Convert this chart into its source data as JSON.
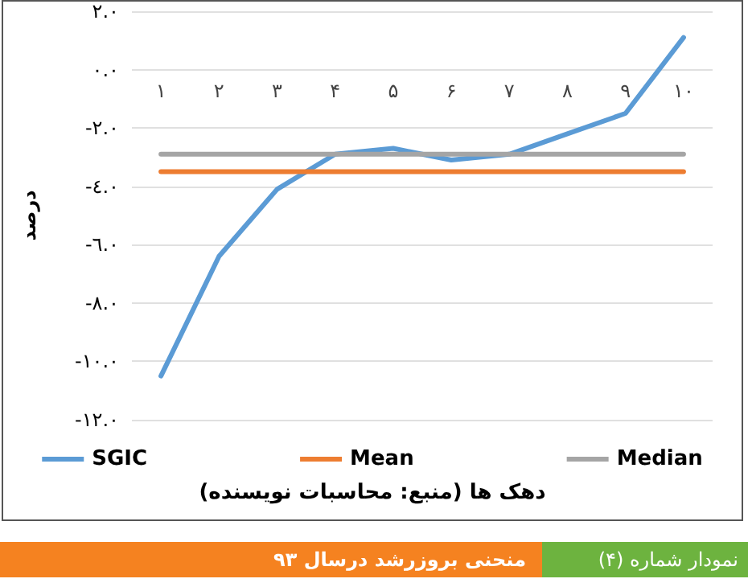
{
  "chart_data": {
    "type": "line",
    "title": "منحنی بروزرشد درسال ۹۳",
    "annotations": [
      "نمودار شماره (۴)"
    ],
    "xlabel": "دهک ها (منبع: محاسبات نویسنده)",
    "ylabel": "درصد",
    "categories": [
      "۱",
      "۲",
      "۳",
      "۴",
      "۵",
      "۶",
      "۷",
      "۸",
      "۹",
      "۱۰"
    ],
    "series": [
      {
        "name": "SGIC",
        "color": "#5b9bd5",
        "values": [
          -10.5,
          -6.4,
          -4.1,
          -2.9,
          -2.7,
          -3.1,
          -2.9,
          -2.2,
          -1.5,
          1.1
        ]
      },
      {
        "name": "Mean",
        "color": "#ed7d31",
        "values": [
          -3.5,
          -3.5,
          -3.5,
          -3.5,
          -3.5,
          -3.5,
          -3.5,
          -3.5,
          -3.5,
          -3.5
        ]
      },
      {
        "name": "Median",
        "color": "#a5a5a5",
        "values": [
          -2.9,
          -2.9,
          -2.9,
          -2.9,
          -2.9,
          -2.9,
          -2.9,
          -2.9,
          -2.9,
          -2.9
        ]
      }
    ],
    "ylim": [
      -12,
      2
    ],
    "yticks": [
      {
        "value": -12,
        "label": "-١٢.٠"
      },
      {
        "value": -10,
        "label": "-١٠.٠"
      },
      {
        "value": -8,
        "label": "-٨.٠"
      },
      {
        "value": -6,
        "label": "-٦.٠"
      },
      {
        "value": -4,
        "label": "-٤.٠"
      },
      {
        "value": -2,
        "label": "-٢.٠"
      },
      {
        "value": 0,
        "label": "٠.٠"
      },
      {
        "value": 2,
        "label": "٢.٠"
      }
    ],
    "grid": "y",
    "legend": "bottom",
    "marker": "none",
    "line_style": "solid"
  }
}
